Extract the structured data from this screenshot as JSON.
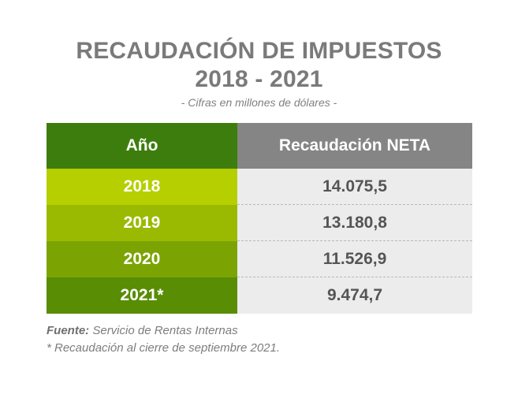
{
  "title_line1": "RECAUDACIÓN DE IMPUESTOS",
  "title_line2": "2018 - 2021",
  "subtitle": "- Cifras en millones de dólares -",
  "colors": {
    "header_year_bg": "#3d7d0e",
    "header_value_bg": "#858585",
    "value_bg": "#ececec",
    "row_year_bg": [
      "#b6cf00",
      "#99ba00",
      "#7ba403",
      "#588d04"
    ]
  },
  "chart_data": {
    "type": "table",
    "columns": [
      "Año",
      "Recaudación NETA"
    ],
    "rows": [
      {
        "year": "2018",
        "value": "14.075,5"
      },
      {
        "year": "2019",
        "value": "13.180,8"
      },
      {
        "year": "2020",
        "value": "11.526,9"
      },
      {
        "year": "2021*",
        "value": "9.474,7"
      }
    ],
    "categories": [
      "2018",
      "2019",
      "2020",
      "2021*"
    ],
    "values": [
      14075.5,
      13180.8,
      11526.9,
      9474.7
    ]
  },
  "footer": {
    "source_label": "Fuente:",
    "source_text": "Servicio de Rentas Internas",
    "note": "* Recaudación al cierre de septiembre 2021."
  }
}
